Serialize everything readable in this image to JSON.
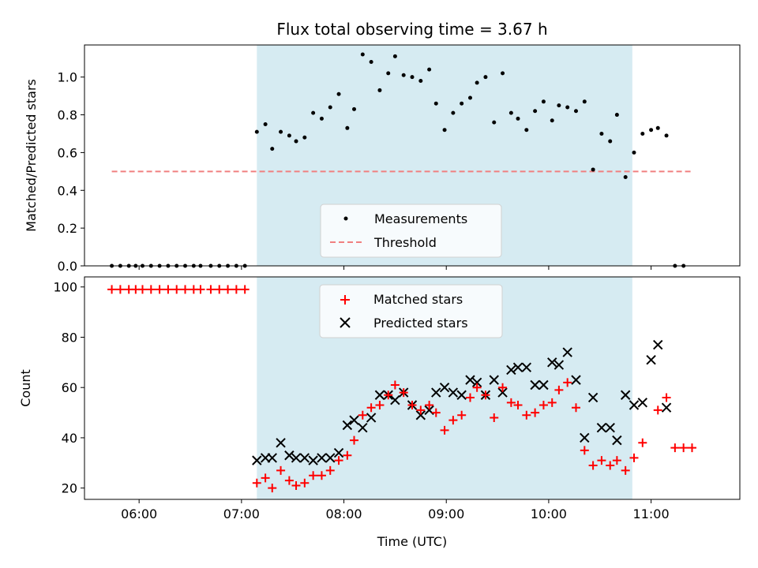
{
  "chart_data": [
    {
      "type": "scatter",
      "title": "Flux total observing time = 3.67 h",
      "xlabel": "",
      "ylabel": "Matched/Predicted stars",
      "xlim": [
        "05:28",
        "11:52"
      ],
      "ylim": [
        0,
        1.17
      ],
      "yticks": [
        "0.0",
        "0.2",
        "0.4",
        "0.6",
        "0.8",
        "1.0"
      ],
      "grid": false,
      "legend_position": "lower-center",
      "shaded_interval": [
        "07:09",
        "10:49"
      ],
      "series": [
        {
          "name": "Measurements",
          "marker": "dot",
          "color": "#000000",
          "points": [
            [
              "05:44",
              0.0
            ],
            [
              "05:49",
              0.0
            ],
            [
              "05:54",
              0.0
            ],
            [
              "05:58",
              0.0
            ],
            [
              "06:02",
              0.0
            ],
            [
              "06:07",
              0.0
            ],
            [
              "06:12",
              0.0
            ],
            [
              "06:17",
              0.0
            ],
            [
              "06:22",
              0.0
            ],
            [
              "06:27",
              0.0
            ],
            [
              "06:32",
              0.0
            ],
            [
              "06:36",
              0.0
            ],
            [
              "06:42",
              0.0
            ],
            [
              "06:47",
              0.0
            ],
            [
              "06:52",
              0.0
            ],
            [
              "06:57",
              0.0
            ],
            [
              "07:02",
              0.0
            ],
            [
              "07:09",
              0.71
            ],
            [
              "07:14",
              0.75
            ],
            [
              "07:18",
              0.62
            ],
            [
              "07:23",
              0.71
            ],
            [
              "07:28",
              0.69
            ],
            [
              "07:32",
              0.66
            ],
            [
              "07:37",
              0.68
            ],
            [
              "07:42",
              0.81
            ],
            [
              "07:47",
              0.78
            ],
            [
              "07:52",
              0.84
            ],
            [
              "07:57",
              0.91
            ],
            [
              "08:02",
              0.73
            ],
            [
              "08:06",
              0.83
            ],
            [
              "08:11",
              1.12
            ],
            [
              "08:16",
              1.08
            ],
            [
              "08:21",
              0.93
            ],
            [
              "08:26",
              1.02
            ],
            [
              "08:30",
              1.11
            ],
            [
              "08:35",
              1.01
            ],
            [
              "08:40",
              1.0
            ],
            [
              "08:45",
              0.98
            ],
            [
              "08:50",
              1.04
            ],
            [
              "08:54",
              0.86
            ],
            [
              "08:59",
              0.72
            ],
            [
              "09:04",
              0.81
            ],
            [
              "09:09",
              0.86
            ],
            [
              "09:14",
              0.89
            ],
            [
              "09:18",
              0.97
            ],
            [
              "09:23",
              1.0
            ],
            [
              "09:28",
              0.76
            ],
            [
              "09:33",
              1.02
            ],
            [
              "09:38",
              0.81
            ],
            [
              "09:42",
              0.78
            ],
            [
              "09:47",
              0.72
            ],
            [
              "09:52",
              0.82
            ],
            [
              "09:57",
              0.87
            ],
            [
              "10:02",
              0.77
            ],
            [
              "10:06",
              0.85
            ],
            [
              "10:11",
              0.84
            ],
            [
              "10:16",
              0.82
            ],
            [
              "10:21",
              0.87
            ],
            [
              "10:26",
              0.51
            ],
            [
              "10:31",
              0.7
            ],
            [
              "10:36",
              0.66
            ],
            [
              "10:40",
              0.8
            ],
            [
              "10:45",
              0.47
            ],
            [
              "10:50",
              0.6
            ],
            [
              "10:55",
              0.7
            ],
            [
              "11:00",
              0.72
            ],
            [
              "11:04",
              0.73
            ],
            [
              "11:09",
              0.69
            ],
            [
              "11:14",
              0.0
            ],
            [
              "11:19",
              0.0
            ]
          ]
        },
        {
          "name": "Threshold",
          "marker": "dashed-line",
          "color": "#f08080",
          "x": [
            "05:44",
            "11:24"
          ],
          "y": [
            0.5,
            0.5
          ]
        }
      ]
    },
    {
      "type": "scatter",
      "title": "",
      "xlabel": "Time (UTC)",
      "ylabel": "Count",
      "xlim": [
        "05:28",
        "11:52"
      ],
      "ylim": [
        15.5,
        104
      ],
      "yticks": [
        "20",
        "40",
        "60",
        "80",
        "100"
      ],
      "xticks": [
        "06:00",
        "07:00",
        "08:00",
        "09:00",
        "10:00",
        "11:00"
      ],
      "grid": false,
      "legend_position": "upper-center",
      "shaded_interval": [
        "07:09",
        "10:49"
      ],
      "series": [
        {
          "name": "Matched stars",
          "marker": "plus",
          "color": "#ff0000",
          "points": [
            [
              "05:44",
              99
            ],
            [
              "05:49",
              99
            ],
            [
              "05:54",
              99
            ],
            [
              "05:58",
              99
            ],
            [
              "06:02",
              99
            ],
            [
              "06:07",
              99
            ],
            [
              "06:12",
              99
            ],
            [
              "06:17",
              99
            ],
            [
              "06:22",
              99
            ],
            [
              "06:27",
              99
            ],
            [
              "06:32",
              99
            ],
            [
              "06:36",
              99
            ],
            [
              "06:42",
              99
            ],
            [
              "06:47",
              99
            ],
            [
              "06:52",
              99
            ],
            [
              "06:57",
              99
            ],
            [
              "07:02",
              99
            ],
            [
              "07:09",
              22
            ],
            [
              "07:14",
              24
            ],
            [
              "07:18",
              20
            ],
            [
              "07:23",
              27
            ],
            [
              "07:28",
              23
            ],
            [
              "07:32",
              21
            ],
            [
              "07:37",
              22
            ],
            [
              "07:42",
              25
            ],
            [
              "07:47",
              25
            ],
            [
              "07:52",
              27
            ],
            [
              "07:57",
              31
            ],
            [
              "08:02",
              33
            ],
            [
              "08:06",
              39
            ],
            [
              "08:11",
              49
            ],
            [
              "08:16",
              52
            ],
            [
              "08:21",
              53
            ],
            [
              "08:26",
              57
            ],
            [
              "08:30",
              61
            ],
            [
              "08:35",
              58
            ],
            [
              "08:40",
              53
            ],
            [
              "08:45",
              51
            ],
            [
              "08:50",
              53
            ],
            [
              "08:54",
              50
            ],
            [
              "08:59",
              43
            ],
            [
              "09:04",
              47
            ],
            [
              "09:09",
              49
            ],
            [
              "09:14",
              56
            ],
            [
              "09:18",
              60
            ],
            [
              "09:23",
              57
            ],
            [
              "09:28",
              48
            ],
            [
              "09:33",
              60
            ],
            [
              "09:38",
              54
            ],
            [
              "09:42",
              53
            ],
            [
              "09:47",
              49
            ],
            [
              "09:52",
              50
            ],
            [
              "09:57",
              53
            ],
            [
              "10:02",
              54
            ],
            [
              "10:06",
              59
            ],
            [
              "10:11",
              62
            ],
            [
              "10:16",
              52
            ],
            [
              "10:21",
              35
            ],
            [
              "10:26",
              29
            ],
            [
              "10:31",
              31
            ],
            [
              "10:36",
              29
            ],
            [
              "10:40",
              31
            ],
            [
              "10:45",
              27
            ],
            [
              "10:50",
              32
            ],
            [
              "10:55",
              38
            ],
            [
              "11:04",
              51
            ],
            [
              "11:09",
              56
            ],
            [
              "11:14",
              36
            ],
            [
              "11:19",
              36
            ],
            [
              "11:24",
              36
            ]
          ]
        },
        {
          "name": "Predicted stars",
          "marker": "x",
          "color": "#000000",
          "points": [
            [
              "07:09",
              31
            ],
            [
              "07:14",
              32
            ],
            [
              "07:18",
              32
            ],
            [
              "07:23",
              38
            ],
            [
              "07:28",
              33
            ],
            [
              "07:32",
              32
            ],
            [
              "07:37",
              32
            ],
            [
              "07:42",
              31
            ],
            [
              "07:47",
              32
            ],
            [
              "07:52",
              32
            ],
            [
              "07:57",
              34
            ],
            [
              "08:02",
              45
            ],
            [
              "08:06",
              47
            ],
            [
              "08:11",
              44
            ],
            [
              "08:16",
              48
            ],
            [
              "08:21",
              57
            ],
            [
              "08:26",
              57
            ],
            [
              "08:30",
              55
            ],
            [
              "08:35",
              58
            ],
            [
              "08:40",
              53
            ],
            [
              "08:45",
              49
            ],
            [
              "08:50",
              51
            ],
            [
              "08:54",
              58
            ],
            [
              "08:59",
              60
            ],
            [
              "09:04",
              58
            ],
            [
              "09:09",
              57
            ],
            [
              "09:14",
              63
            ],
            [
              "09:18",
              62
            ],
            [
              "09:23",
              57
            ],
            [
              "09:28",
              63
            ],
            [
              "09:33",
              58
            ],
            [
              "09:38",
              67
            ],
            [
              "09:42",
              68
            ],
            [
              "09:47",
              68
            ],
            [
              "09:52",
              61
            ],
            [
              "09:57",
              61
            ],
            [
              "10:02",
              70
            ],
            [
              "10:06",
              69
            ],
            [
              "10:11",
              74
            ],
            [
              "10:16",
              63
            ],
            [
              "10:21",
              40
            ],
            [
              "10:26",
              56
            ],
            [
              "10:31",
              44
            ],
            [
              "10:36",
              44
            ],
            [
              "10:40",
              39
            ],
            [
              "10:45",
              57
            ],
            [
              "10:50",
              53
            ],
            [
              "10:55",
              54
            ],
            [
              "11:00",
              71
            ],
            [
              "11:04",
              77
            ],
            [
              "11:09",
              52
            ]
          ]
        }
      ]
    }
  ]
}
